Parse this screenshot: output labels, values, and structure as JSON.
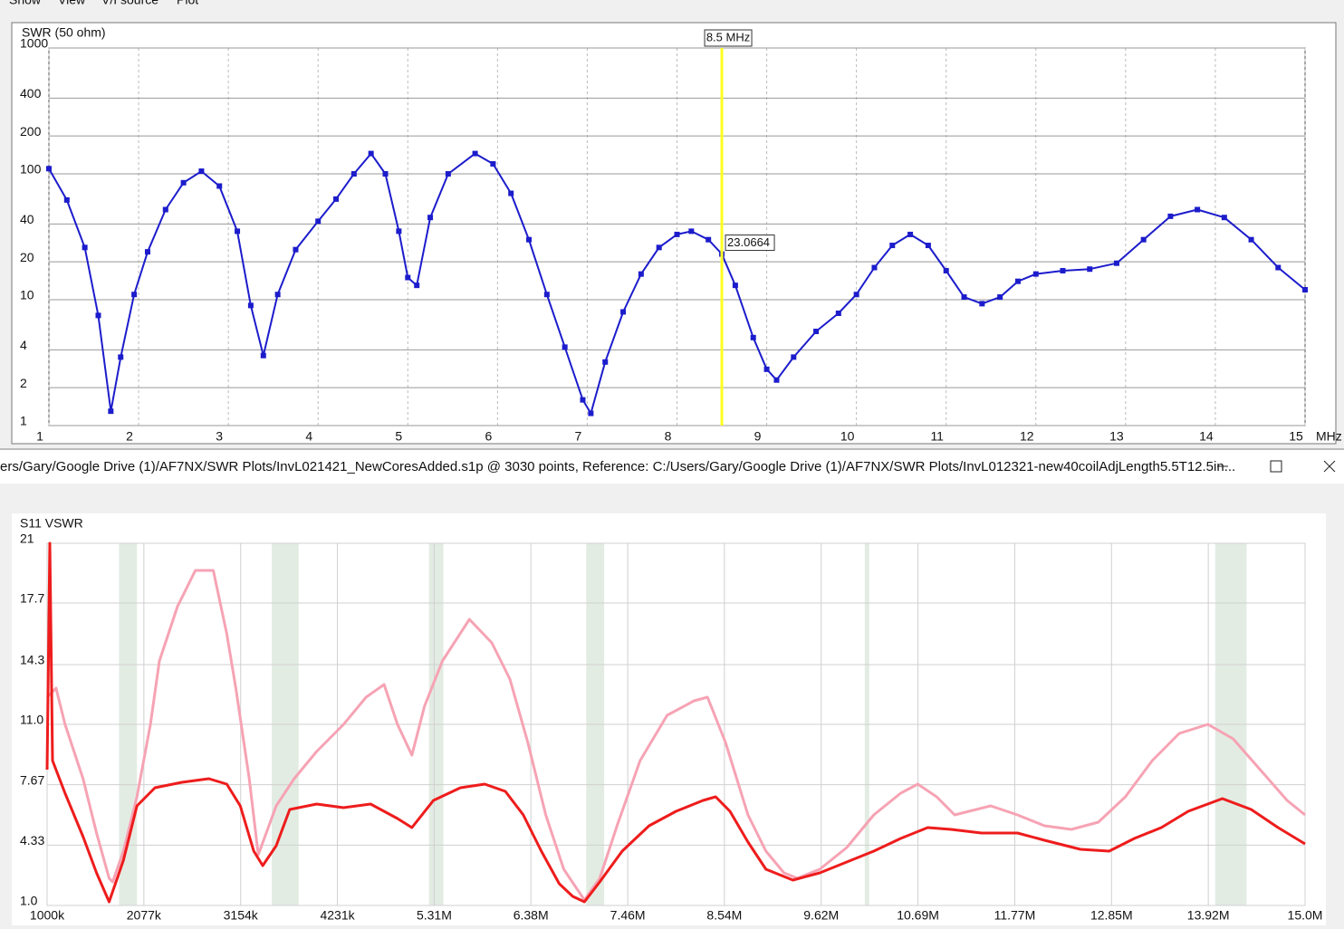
{
  "menu": [
    "Show",
    "View",
    "V/I source",
    "Plot"
  ],
  "window_title": "ers/Gary/Google Drive (1)/AF7NX/SWR Plots/InvL021421_NewCoresAdded.s1p @ 3030 points, Reference: C:/Users/Gary/Google Drive (1)/AF7NX/SWR Plots/InvL012321-new40coilAdjLength5.5T12.5in...",
  "chart_data": [
    {
      "type": "line",
      "title": "SWR (50 ohm)",
      "x_label": "MHz",
      "log_y": true,
      "grid": true,
      "markers": true,
      "xlim": [
        1,
        15
      ],
      "xticks": [
        1,
        2,
        3,
        4,
        5,
        6,
        7,
        8,
        9,
        10,
        11,
        12,
        13,
        14,
        15
      ],
      "ylim": [
        1,
        1000
      ],
      "yticks": [
        1,
        2,
        4,
        10,
        20,
        40,
        100,
        200,
        400,
        1000
      ],
      "cursor": {
        "x": 8.5,
        "label": "8.5 MHz",
        "value": 23.0664,
        "color": "#ffff20"
      },
      "series": [
        {
          "color": "#1c1ccc",
          "x": [
            1.0,
            1.2,
            1.4,
            1.55,
            1.69,
            1.8,
            1.95,
            2.1,
            2.3,
            2.5,
            2.7,
            2.9,
            3.1,
            3.25,
            3.39,
            3.55,
            3.75,
            4.0,
            4.2,
            4.4,
            4.59,
            4.75,
            4.9,
            5.0,
            5.1,
            5.25,
            5.45,
            5.75,
            5.95,
            6.15,
            6.35,
            6.55,
            6.75,
            6.95,
            7.04,
            7.2,
            7.4,
            7.6,
            7.8,
            8.0,
            8.16,
            8.35,
            8.5,
            8.65,
            8.85,
            9.0,
            9.11,
            9.3,
            9.55,
            9.8,
            10.0,
            10.2,
            10.4,
            10.6,
            10.8,
            11.0,
            11.2,
            11.4,
            11.6,
            11.8,
            12.0,
            12.3,
            12.6,
            12.9,
            13.2,
            13.5,
            13.8,
            14.1,
            14.4,
            14.7,
            15.0
          ],
          "values": [
            110,
            62,
            26,
            7.5,
            1.3,
            3.5,
            11,
            24,
            52,
            85,
            105,
            80,
            35,
            9,
            3.6,
            11,
            25,
            42,
            63,
            100,
            145,
            100,
            35,
            15,
            13,
            45,
            100,
            145,
            120,
            70,
            30,
            11,
            4.2,
            1.6,
            1.25,
            3.2,
            8,
            16,
            26,
            33,
            35,
            30,
            23.0664,
            13,
            5,
            2.8,
            2.3,
            3.5,
            5.6,
            7.8,
            11,
            18,
            27,
            33,
            27,
            17,
            10.5,
            9.3,
            10.5,
            14,
            16,
            17,
            17.5,
            19.5,
            30,
            46,
            52,
            45,
            30,
            18,
            12
          ]
        }
      ]
    },
    {
      "type": "line",
      "title": "S11 VSWR",
      "grid": true,
      "band_color": "#e3ece3",
      "xlim": [
        1,
        15
      ],
      "xticks": [
        {
          "value": 1,
          "label": "1000k"
        },
        {
          "value": 2.077,
          "label": "2077k"
        },
        {
          "value": 3.154,
          "label": "3154k"
        },
        {
          "value": 4.231,
          "label": "4231k"
        },
        {
          "value": 5.308,
          "label": "5.31M"
        },
        {
          "value": 6.384,
          "label": "6.38M"
        },
        {
          "value": 7.462,
          "label": "7.46M"
        },
        {
          "value": 8.538,
          "label": "8.54M"
        },
        {
          "value": 9.615,
          "label": "9.62M"
        },
        {
          "value": 10.692,
          "label": "10.69M"
        },
        {
          "value": 11.769,
          "label": "11.77M"
        },
        {
          "value": 12.846,
          "label": "12.85M"
        },
        {
          "value": 13.923,
          "label": "13.92M"
        },
        {
          "value": 15,
          "label": "15.0M"
        }
      ],
      "ylim": [
        1,
        21
      ],
      "yticks": [
        {
          "value": 1,
          "label": "1.0"
        },
        4.33,
        7.67,
        {
          "value": 11,
          "label": "11.0"
        },
        14.3,
        17.7,
        21
      ],
      "bands": [
        [
          1.8,
          2.0
        ],
        [
          3.5,
          3.8
        ],
        [
          5.25,
          5.41
        ],
        [
          7.0,
          7.2
        ],
        [
          10.1,
          10.15
        ],
        [
          14.0,
          14.35
        ]
      ],
      "series": [
        {
          "color": "#f6a3b4",
          "x": [
            1.0,
            1.1,
            1.2,
            1.4,
            1.55,
            1.69,
            1.73,
            1.85,
            2.0,
            2.15,
            2.25,
            2.45,
            2.65,
            2.85,
            3.0,
            3.1,
            3.25,
            3.35,
            3.55,
            3.75,
            4.0,
            4.3,
            4.55,
            4.75,
            4.9,
            5.06,
            5.2,
            5.4,
            5.7,
            5.95,
            6.15,
            6.35,
            6.55,
            6.75,
            6.98,
            7.15,
            7.35,
            7.6,
            7.9,
            8.2,
            8.35,
            8.55,
            8.8,
            9.0,
            9.2,
            9.35,
            9.6,
            9.9,
            10.2,
            10.5,
            10.69,
            10.9,
            11.1,
            11.5,
            11.8,
            12.1,
            12.4,
            12.7,
            13.0,
            13.3,
            13.6,
            13.92,
            14.2,
            14.5,
            14.8,
            15.0
          ],
          "values": [
            12.5,
            13,
            11,
            8,
            5,
            2.5,
            2.3,
            4,
            7,
            11,
            14.5,
            17.5,
            19.5,
            19.5,
            16,
            13,
            8,
            3.8,
            6.5,
            8,
            9.5,
            11,
            12.5,
            13.2,
            11,
            9.3,
            12,
            14.5,
            16.8,
            15.5,
            13.5,
            10,
            6,
            3,
            1.3,
            2.5,
            5.5,
            9,
            11.5,
            12.3,
            12.5,
            10,
            6,
            4,
            2.8,
            2.5,
            3.0,
            4.2,
            6,
            7.2,
            7.7,
            7.0,
            6.0,
            6.5,
            6.0,
            5.4,
            5.2,
            5.6,
            7.0,
            9.0,
            10.5,
            11.0,
            10.2,
            8.5,
            6.8,
            6.0
          ]
        },
        {
          "color": "#ee1c1c",
          "x": [
            1.0,
            1.03,
            1.06,
            1.2,
            1.4,
            1.55,
            1.69,
            1.85,
            2.0,
            2.2,
            2.5,
            2.8,
            3.0,
            3.15,
            3.3,
            3.4,
            3.55,
            3.7,
            4.0,
            4.3,
            4.6,
            4.9,
            5.06,
            5.3,
            5.6,
            5.87,
            6.1,
            6.3,
            6.5,
            6.7,
            6.85,
            6.98,
            7.15,
            7.4,
            7.7,
            8.0,
            8.3,
            8.44,
            8.6,
            8.8,
            9.0,
            9.3,
            9.6,
            9.9,
            10.2,
            10.5,
            10.8,
            11.06,
            11.4,
            11.8,
            12.1,
            12.5,
            12.82,
            13.1,
            13.4,
            13.7,
            14.08,
            14.4,
            14.7,
            15.0
          ],
          "values": [
            8.5,
            21,
            9,
            7.2,
            4.8,
            2.8,
            1.2,
            3.5,
            6.5,
            7.5,
            7.8,
            8.0,
            7.7,
            6.5,
            4,
            3.2,
            4.3,
            6.3,
            6.6,
            6.4,
            6.6,
            5.8,
            5.3,
            6.8,
            7.5,
            7.7,
            7.3,
            6.0,
            4.0,
            2.2,
            1.5,
            1.2,
            2.3,
            4.0,
            5.4,
            6.2,
            6.8,
            7.0,
            6.2,
            4.5,
            3.0,
            2.4,
            2.8,
            3.4,
            4.0,
            4.7,
            5.3,
            5.2,
            5.0,
            5.0,
            4.6,
            4.1,
            4.0,
            4.7,
            5.3,
            6.2,
            6.9,
            6.3,
            5.3,
            4.4
          ]
        }
      ]
    }
  ]
}
